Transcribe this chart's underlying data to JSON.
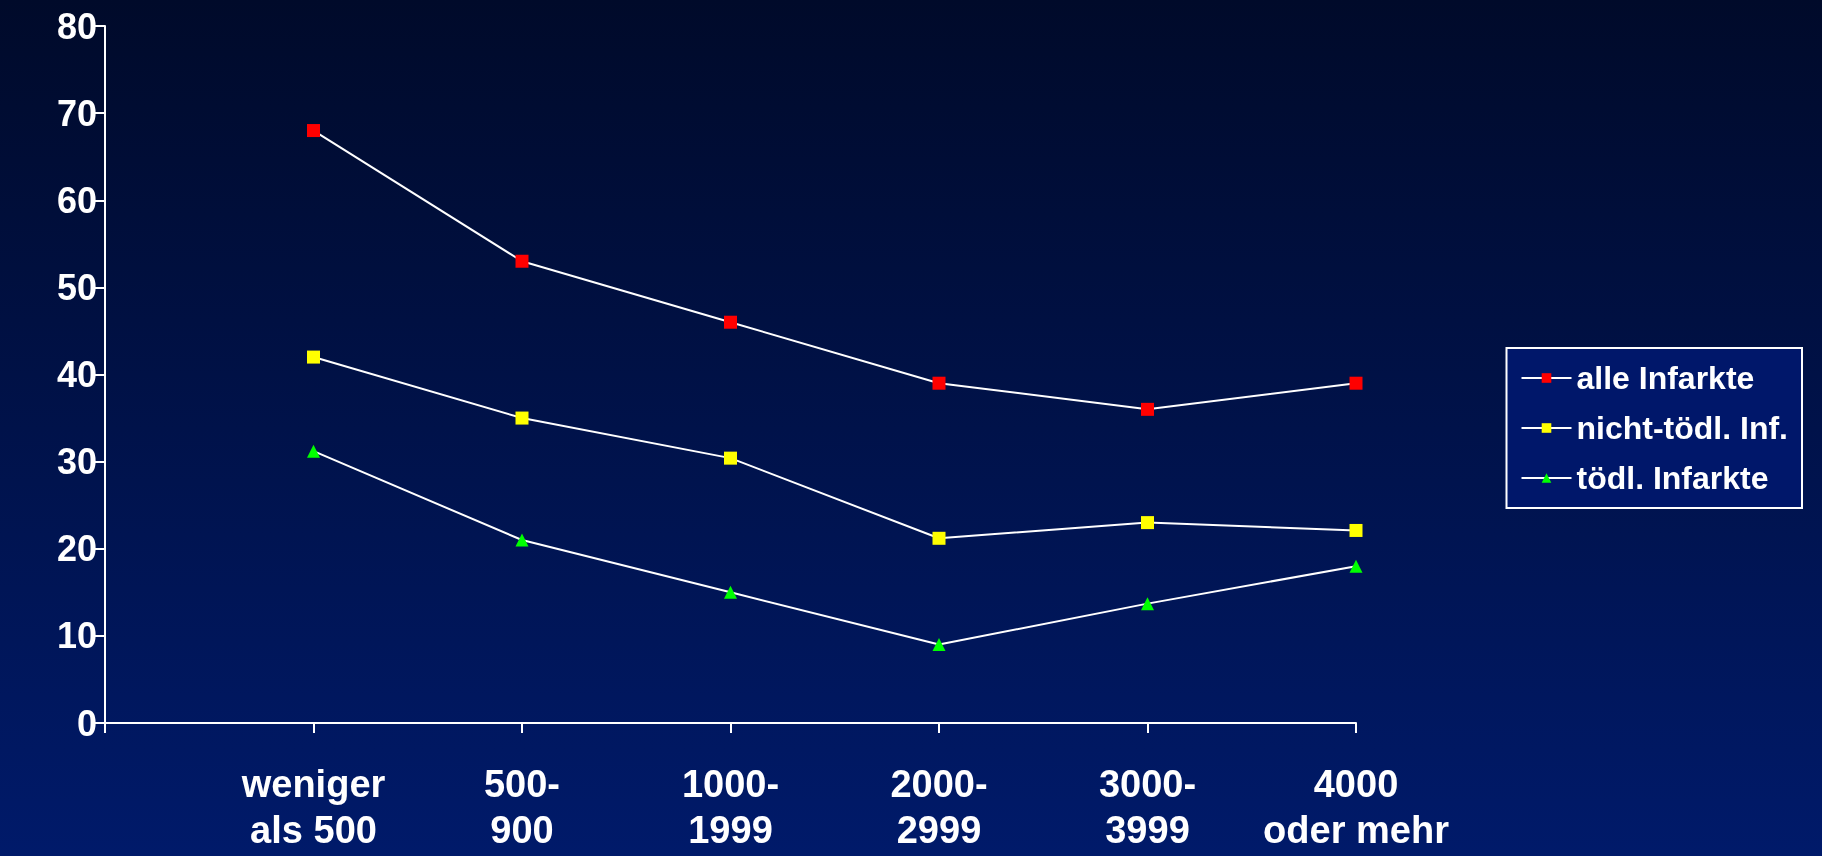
{
  "chart_data": {
    "type": "line",
    "categories": [
      null,
      "weniger\nals 500",
      "500-\n900",
      "1000-\n1999",
      "2000-\n2999",
      "3000-\n3999",
      "4000\noder mehr"
    ],
    "series": [
      {
        "name": "alle Infarkte",
        "color": "#ff0000",
        "marker": "square",
        "values": [
          null,
          68,
          53,
          46,
          39,
          36,
          39
        ]
      },
      {
        "name": "nicht-tödl. Inf.",
        "color": "#ffff00",
        "marker": "square",
        "values": [
          null,
          42,
          35,
          30.4,
          21.2,
          23,
          22.1
        ]
      },
      {
        "name": "tödl. Infarkte",
        "color": "#00ff00",
        "marker": "triangle",
        "values": [
          null,
          31.2,
          21,
          15,
          9,
          13.7,
          18
        ]
      }
    ],
    "ylim": [
      0,
      80
    ],
    "yticks": [
      0,
      10,
      20,
      30,
      40,
      50,
      60,
      70,
      80
    ],
    "grid": false,
    "legend": "right",
    "line_style": "solid"
  }
}
